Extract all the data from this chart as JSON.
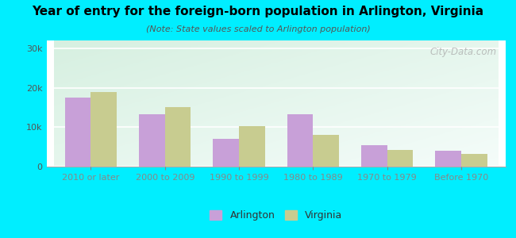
{
  "title": "Year of entry for the foreign-born population in Arlington, Virginia",
  "subtitle": "(Note: State values scaled to Arlington population)",
  "categories": [
    "2010 or later",
    "2000 to 2009",
    "1990 to 1999",
    "1980 to 1989",
    "1970 to 1979",
    "Before 1970"
  ],
  "arlington": [
    17500,
    13200,
    7000,
    13200,
    5500,
    4000
  ],
  "virginia": [
    19000,
    15000,
    10200,
    8000,
    4200,
    3200
  ],
  "arlington_color": "#c8a0d8",
  "virginia_color": "#c8cc90",
  "background_outer": "#00eeff",
  "ylim": [
    0,
    32000
  ],
  "yticks": [
    0,
    10000,
    20000,
    30000
  ],
  "bar_width": 0.35,
  "legend_labels": [
    "Arlington",
    "Virginia"
  ],
  "watermark": "City-Data.com",
  "grid_color": "#ffffff",
  "title_fontsize": 11,
  "subtitle_fontsize": 8
}
